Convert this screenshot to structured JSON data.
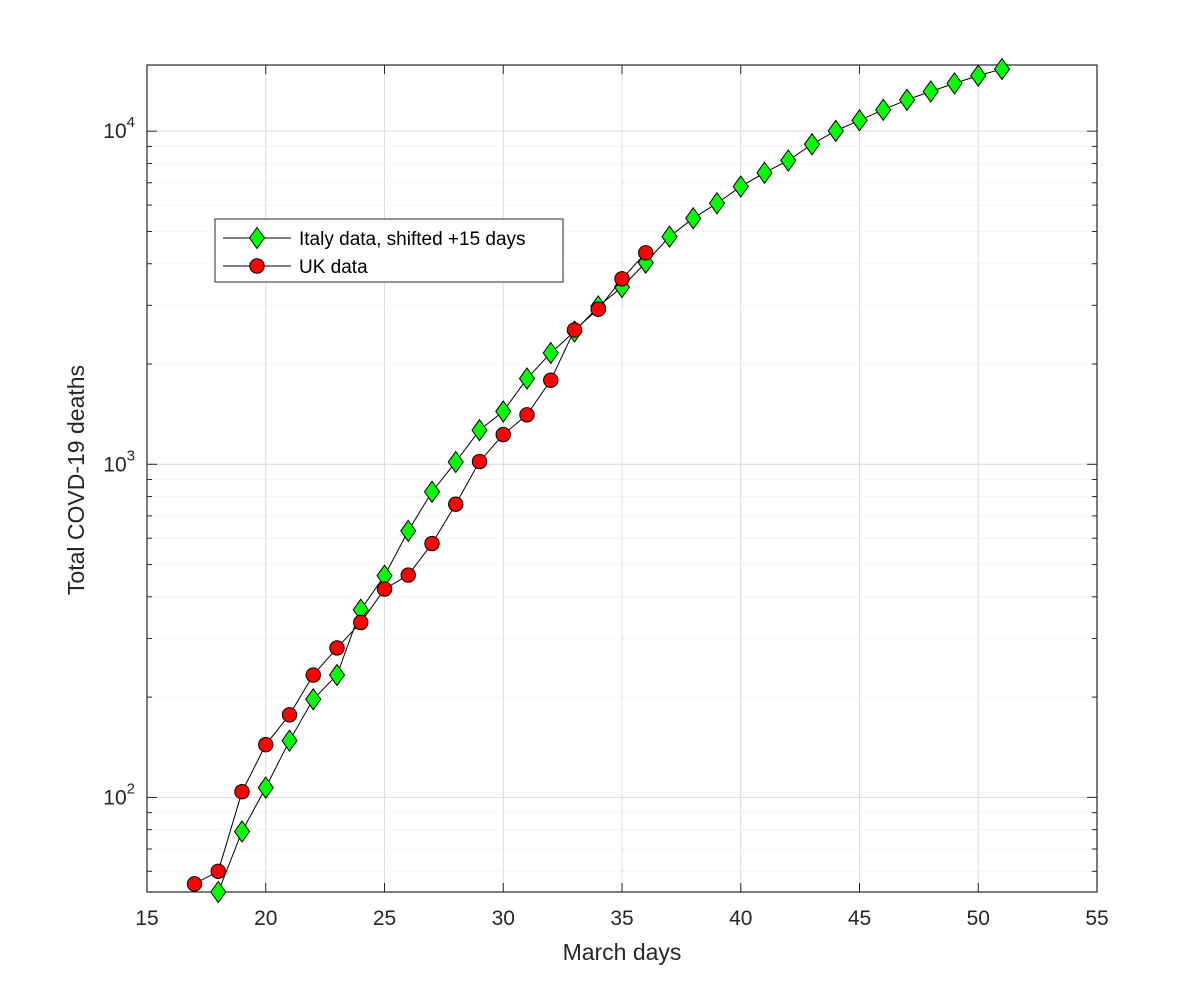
{
  "chart_data": {
    "type": "line",
    "xlabel": "March days",
    "ylabel": "Total COVD-19 deaths",
    "xlim": [
      15,
      55
    ],
    "ylim": [
      52,
      15800
    ],
    "yscale": "log",
    "grid": true,
    "minor_grid_y": true,
    "legend_position": "upper-left",
    "x_ticks": [
      15,
      20,
      25,
      30,
      35,
      40,
      45,
      50,
      55
    ],
    "y_ticks": [
      {
        "value": 100,
        "base": "10",
        "exp": "2"
      },
      {
        "value": 1000,
        "base": "10",
        "exp": "3"
      },
      {
        "value": 10000,
        "base": "10",
        "exp": "4"
      }
    ],
    "series": [
      {
        "name": "Italy data, shifted +15 days",
        "marker": "diamond",
        "color": "#00ff00",
        "x": [
          18,
          19,
          20,
          21,
          22,
          23,
          24,
          25,
          26,
          27,
          28,
          29,
          30,
          31,
          32,
          33,
          34,
          35,
          36,
          37,
          38,
          39,
          40,
          41,
          42,
          43,
          44,
          45,
          46,
          47,
          48,
          49,
          50,
          51
        ],
        "y": [
          52,
          79,
          107,
          148,
          197,
          233,
          366,
          463,
          631,
          827,
          1016,
          1266,
          1441,
          1809,
          2158,
          2503,
          2978,
          3405,
          4032,
          4825,
          5476,
          6077,
          6820,
          7503,
          8165,
          9134,
          10023,
          10779,
          11591,
          12428,
          13155,
          13915,
          14681,
          15362
        ]
      },
      {
        "name": "UK data",
        "marker": "circle",
        "color": "#ff0000",
        "x": [
          17,
          18,
          19,
          20,
          21,
          22,
          23,
          24,
          25,
          26,
          27,
          28,
          29,
          30,
          31,
          32,
          33,
          34,
          35,
          36
        ],
        "y": [
          55,
          60,
          104,
          144,
          177,
          233,
          281,
          335,
          422,
          465,
          578,
          759,
          1019,
          1228,
          1408,
          1789,
          2532,
          2921,
          3605,
          4313
        ]
      }
    ]
  }
}
